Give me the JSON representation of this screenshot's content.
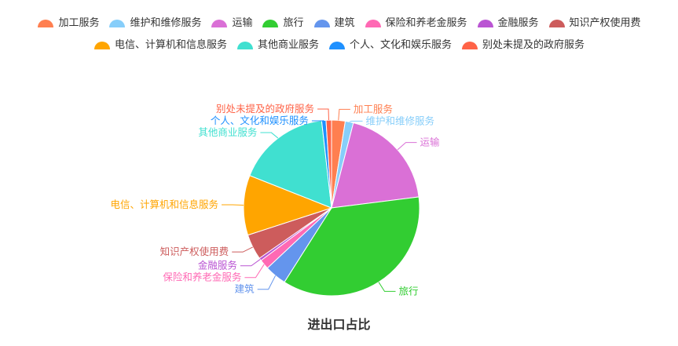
{
  "chart_data": {
    "type": "pie",
    "title": "进出口占比",
    "series": [
      {
        "name": "加工服务",
        "value": 2.5,
        "color": "#ff7f50"
      },
      {
        "name": "维护和维修服务",
        "value": 1.5,
        "color": "#87cefa"
      },
      {
        "name": "运输",
        "value": 19.0,
        "color": "#da70d6"
      },
      {
        "name": "旅行",
        "value": 36.0,
        "color": "#32cd32"
      },
      {
        "name": "建筑",
        "value": 4.0,
        "color": "#6495ed"
      },
      {
        "name": "保险和养老金服务",
        "value": 1.8,
        "color": "#ff69b4"
      },
      {
        "name": "金融服务",
        "value": 0.5,
        "color": "#ba55d3"
      },
      {
        "name": "知识产权使用费",
        "value": 4.7,
        "color": "#cd5c5c"
      },
      {
        "name": "电信、计算机和信息服务",
        "value": 11.0,
        "color": "#ffa500"
      },
      {
        "name": "其他商业服务",
        "value": 17.2,
        "color": "#40e0d0"
      },
      {
        "name": "个人、文化和娱乐服务",
        "value": 0.8,
        "color": "#1e90ff"
      },
      {
        "name": "别处未提及的政府服务",
        "value": 1.0,
        "color": "#ff6347"
      }
    ],
    "legend_placement": "top-center"
  }
}
